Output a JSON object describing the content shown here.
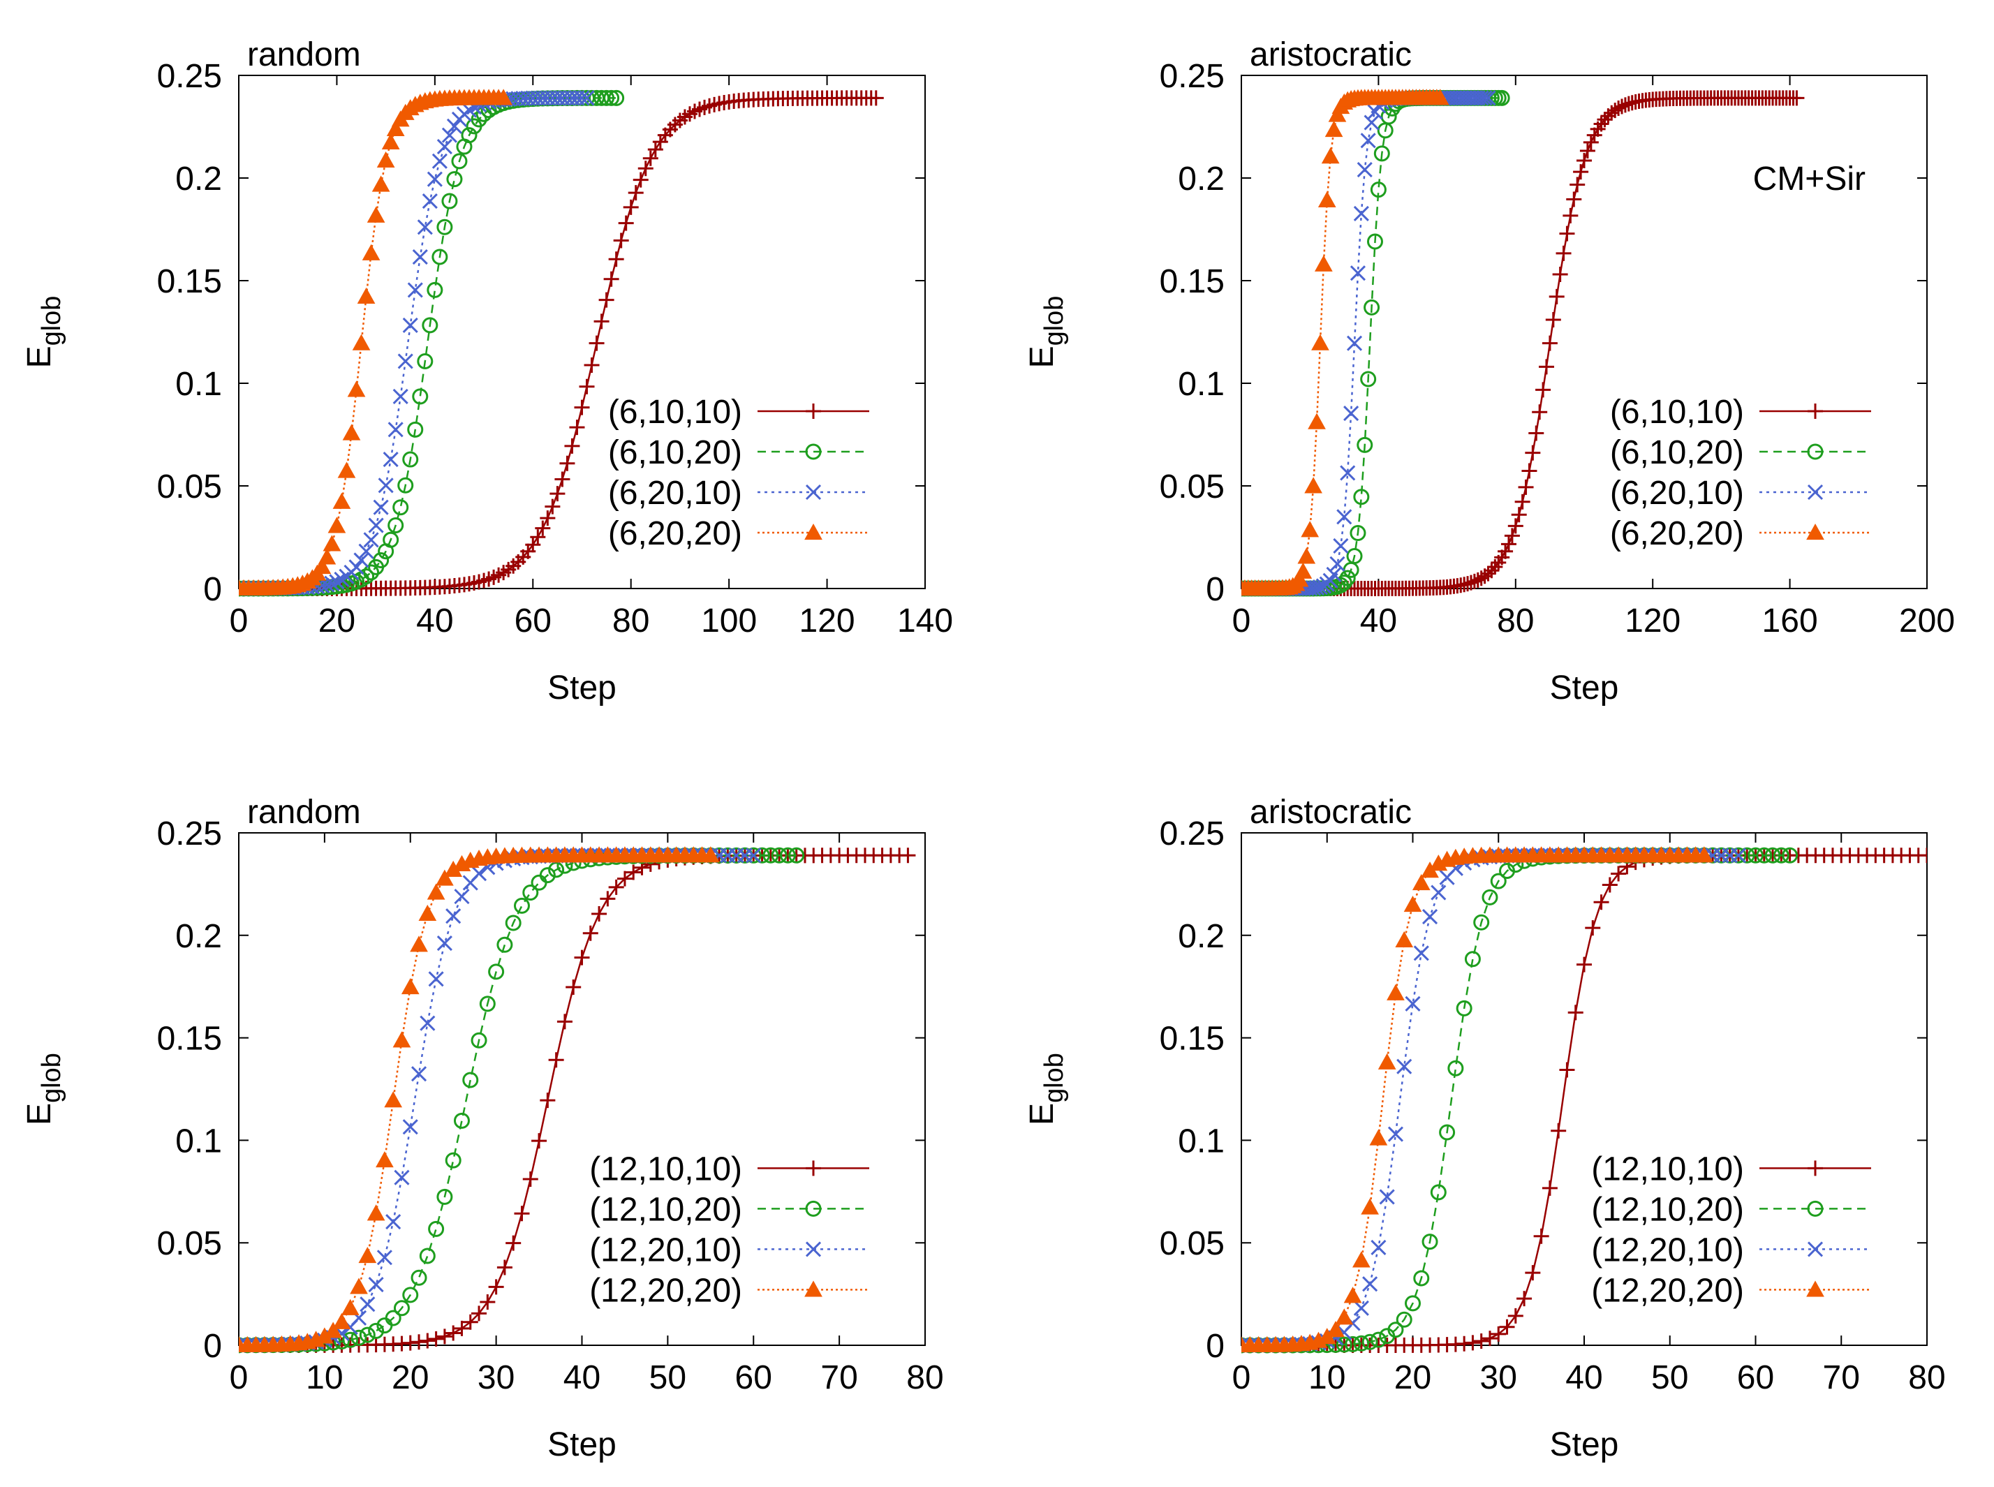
{
  "figure": {
    "colors": {
      "s1": "#990000",
      "s2": "#1e9e1e",
      "s3": "#4a64d0",
      "s4": "#f05a00"
    },
    "markers": [
      "plus",
      "circle",
      "cross",
      "triangle"
    ],
    "dashes": [
      "none",
      "12 8",
      "4 6",
      "3 4"
    ]
  },
  "chart_data": [
    {
      "type": "line",
      "title": "random",
      "annotation": "",
      "xlabel": "Step",
      "ylabel_main": "E",
      "ylabel_sub": "glob",
      "xlim": [
        0,
        140
      ],
      "ylim": [
        0,
        0.25
      ],
      "xticks": [
        0,
        20,
        40,
        60,
        80,
        100,
        120,
        140
      ],
      "yticks": [
        "0",
        "0.05",
        "0.1",
        "0.15",
        "0.2",
        "0.25"
      ],
      "legend_position": "bottom-right",
      "grid": false,
      "series": [
        {
          "name": "(6,10,10)",
          "midpoint": 73,
          "width": 5.6,
          "xmax": 130,
          "plateau": 0.239
        },
        {
          "name": "(6,10,20)",
          "midpoint": 38.5,
          "width": 3.4,
          "xmax": 77,
          "plateau": 0.239
        },
        {
          "name": "(6,20,10)",
          "midpoint": 34.5,
          "width": 3.4,
          "xmax": 71,
          "plateau": 0.239
        },
        {
          "name": "(6,20,20)",
          "midpoint": 25,
          "width": 2.6,
          "xmax": 54,
          "plateau": 0.239
        }
      ]
    },
    {
      "type": "line",
      "title": "aristocratic",
      "annotation": "CM+Sir",
      "xlabel": "Step",
      "ylabel_main": "E",
      "ylabel_sub": "glob",
      "xlim": [
        0,
        200
      ],
      "ylim": [
        0,
        0.25
      ],
      "xticks": [
        0,
        40,
        80,
        120,
        160,
        200
      ],
      "yticks": [
        "0",
        "0.05",
        "0.1",
        "0.15",
        "0.2",
        "0.25"
      ],
      "legend_position": "bottom-right",
      "grid": false,
      "series": [
        {
          "name": "(6,10,10)",
          "midpoint": 90,
          "width": 5.2,
          "xmax": 162,
          "plateau": 0.239
        },
        {
          "name": "(6,10,20)",
          "midpoint": 37.5,
          "width": 1.7,
          "xmax": 76,
          "plateau": 0.239
        },
        {
          "name": "(6,20,10)",
          "midpoint": 33,
          "width": 1.7,
          "xmax": 72,
          "plateau": 0.239
        },
        {
          "name": "(6,20,20)",
          "midpoint": 23,
          "width": 1.5,
          "xmax": 58,
          "plateau": 0.239
        }
      ]
    },
    {
      "type": "line",
      "title": "random",
      "annotation": "",
      "xlabel": "Step",
      "ylabel_main": "E",
      "ylabel_sub": "glob",
      "xlim": [
        0,
        80
      ],
      "ylim": [
        0,
        0.25
      ],
      "xticks": [
        0,
        10,
        20,
        30,
        40,
        50,
        60,
        70,
        80
      ],
      "yticks": [
        "0",
        "0.05",
        "0.1",
        "0.15",
        "0.2",
        "0.25"
      ],
      "legend_position": "bottom-right",
      "grid": false,
      "series": [
        {
          "name": "(12,10,10)",
          "midpoint": 36,
          "width": 3.0,
          "xmax": 78,
          "plateau": 0.239
        },
        {
          "name": "(12,10,20)",
          "midpoint": 26.5,
          "width": 3.0,
          "xmax": 65,
          "plateau": 0.239
        },
        {
          "name": "(12,20,10)",
          "midpoint": 20.5,
          "width": 2.3,
          "xmax": 60,
          "plateau": 0.239
        },
        {
          "name": "(12,20,20)",
          "midpoint": 18,
          "width": 2.0,
          "xmax": 55,
          "plateau": 0.239
        }
      ]
    },
    {
      "type": "line",
      "title": "aristocratic",
      "annotation": "",
      "xlabel": "Step",
      "ylabel_main": "E",
      "ylabel_sub": "glob",
      "xlim": [
        0,
        80
      ],
      "ylim": [
        0,
        0.25
      ],
      "xticks": [
        0,
        10,
        20,
        30,
        40,
        50,
        60,
        70,
        80
      ],
      "yticks": [
        "0",
        "0.05",
        "0.1",
        "0.15",
        "0.2",
        "0.25"
      ],
      "legend_position": "bottom-right",
      "grid": false,
      "series": [
        {
          "name": "(12,10,10)",
          "midpoint": 37.5,
          "width": 2.0,
          "xmax": 81,
          "plateau": 0.239
        },
        {
          "name": "(12,10,20)",
          "midpoint": 24.5,
          "width": 1.9,
          "xmax": 64,
          "plateau": 0.239
        },
        {
          "name": "(12,20,10)",
          "midpoint": 18.5,
          "width": 1.8,
          "xmax": 58,
          "plateau": 0.239
        },
        {
          "name": "(12,20,20)",
          "midpoint": 16.5,
          "width": 1.6,
          "xmax": 54,
          "plateau": 0.239
        }
      ]
    }
  ]
}
